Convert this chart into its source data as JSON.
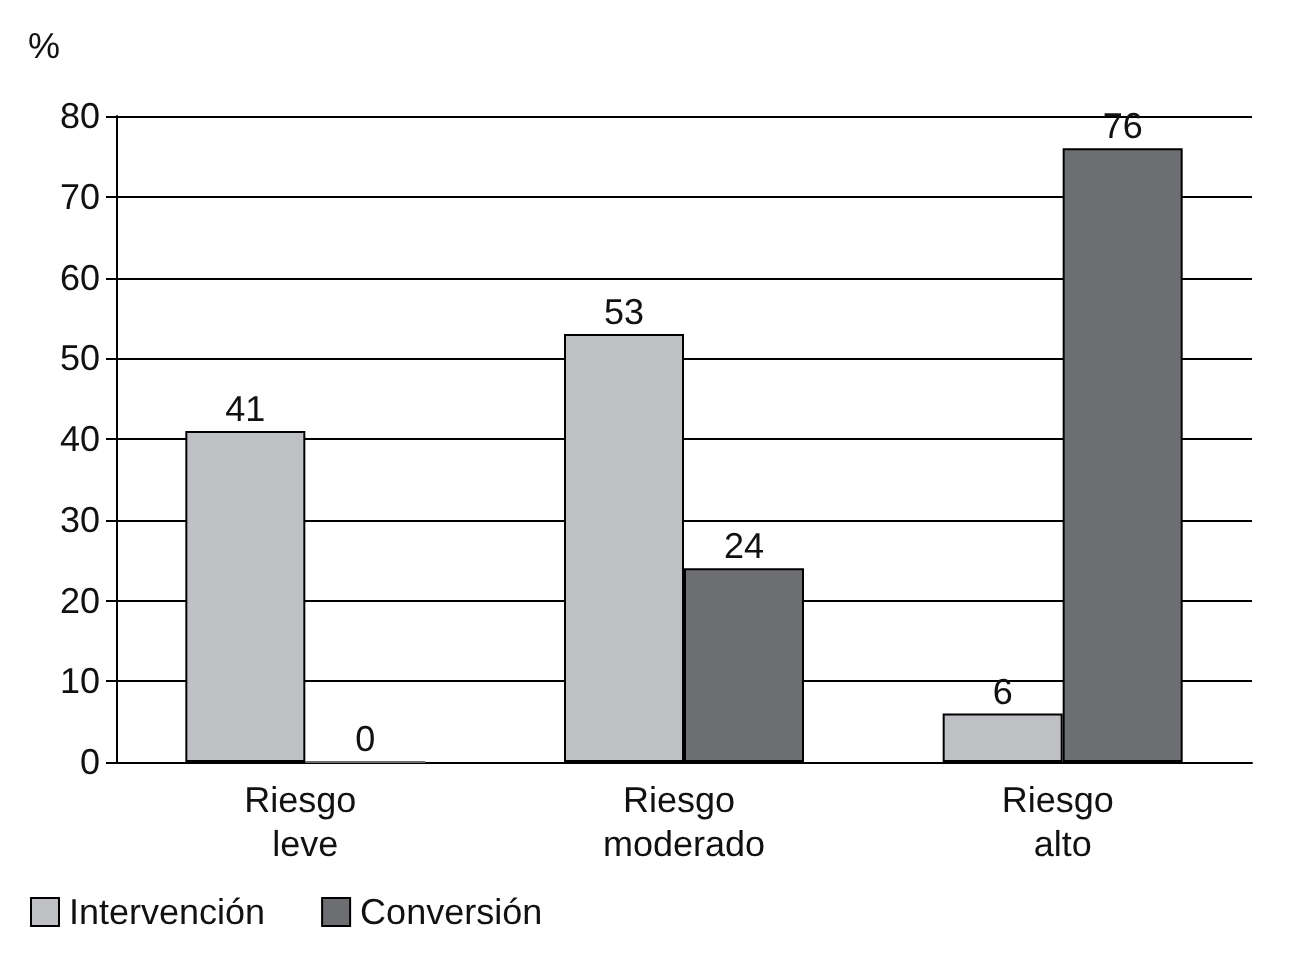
{
  "chart_data": {
    "type": "bar",
    "ylabel": "%",
    "categories": [
      "Riesgo leve",
      "Riesgo moderado",
      "Riesgo alto"
    ],
    "series": [
      {
        "name": "Intervención",
        "color": "#bfc0c4",
        "values": [
          41,
          53,
          6
        ]
      },
      {
        "name": "Conversión",
        "color": "#6d6e71",
        "values": [
          0,
          24,
          76
        ]
      }
    ],
    "ylim": [
      0,
      80
    ],
    "yticks": [
      0,
      10,
      20,
      30,
      40,
      50,
      60,
      70,
      80
    ],
    "grid": "y",
    "legend": "bottom left",
    "data_labels": true
  }
}
